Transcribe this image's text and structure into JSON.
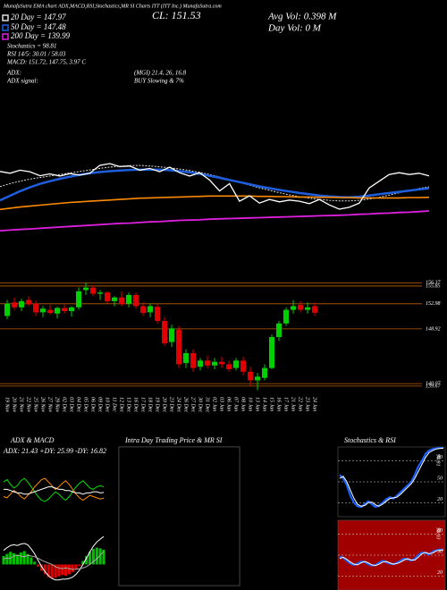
{
  "chart_data": [
    {
      "type": "candlestick",
      "title": "MunafaSutra EMA chart ADX,MACD,RSI,Stochastics,MR SI Charts ITT (ITT Inc.) MunafaSutra.com",
      "annotations": [
        "Stochastics = 98.81",
        "RSI 14/5: 30.01 / 58.03",
        "MACD: 151.72, 147.75, 3.97 C",
        "CL: 151.53",
        "Avg Vol: 0.398 M",
        "Day Vol: 0 M",
        "ADX:",
        "(MGI) 21.4, 26, 16.8",
        "ADX signal:",
        "BUY Slowing & 7%"
      ],
      "categories": [
        "19 Nov",
        "20 Nov",
        "21 Nov",
        "22 Nov",
        "25 Nov",
        "26 Nov",
        "27 Nov",
        "29 Nov",
        "02 Dec",
        "03 Dec",
        "04 Dec",
        "05 Dec",
        "06 Dec",
        "09 Dec",
        "10 Dec",
        "11 Dec",
        "12 Dec",
        "13 Dec",
        "16 Dec",
        "17 Dec",
        "18 Dec",
        "19 Dec",
        "20 Dec",
        "23 Dec",
        "24 Dec",
        "26 Dec",
        "27 Dec",
        "30 Dec",
        "31 Dec",
        "02 Jan",
        "03 Jan",
        "06 Jan",
        "07 Jan",
        "08 Jan",
        "10 Jan",
        "13 Jan",
        "14 Jan",
        "15 Jan",
        "16 Jan",
        "17 Jan",
        "21 Jan",
        "22 Jan",
        "23 Jan",
        "24 Jan"
      ],
      "open": [
        151.0,
        153.2,
        152.4,
        153.6,
        153.0,
        151.6,
        152.0,
        151.4,
        152.3,
        151.8,
        152.4,
        155.2,
        155.6,
        154.6,
        154.8,
        153.4,
        154.0,
        153.0,
        154.4,
        152.6,
        151.6,
        152.5,
        150.2,
        146.8,
        148.8,
        143.4,
        145.0,
        142.8,
        143.8,
        143.0,
        143.6,
        143.2,
        142.6,
        143.8,
        142.0,
        140.6,
        141.0,
        142.6,
        147.6,
        149.8,
        152.0,
        152.8,
        152.0,
        152.6
      ],
      "high": [
        153.6,
        154.0,
        153.8,
        154.2,
        153.5,
        152.6,
        152.8,
        152.5,
        152.9,
        152.6,
        155.6,
        156.4,
        156.0,
        155.2,
        155.0,
        154.2,
        155.0,
        154.8,
        154.8,
        153.2,
        153.0,
        152.9,
        150.8,
        149.6,
        149.4,
        145.6,
        145.6,
        144.2,
        144.6,
        144.2,
        144.4,
        143.8,
        144.2,
        144.4,
        142.8,
        141.8,
        143.2,
        148.0,
        150.2,
        152.4,
        153.6,
        153.4,
        153.2,
        153.2
      ],
      "low": [
        150.5,
        152.0,
        151.8,
        152.6,
        151.0,
        150.8,
        151.2,
        150.6,
        151.4,
        150.9,
        152.0,
        154.4,
        154.2,
        153.6,
        153.0,
        152.6,
        152.6,
        152.4,
        152.2,
        151.0,
        150.8,
        149.8,
        146.2,
        146.0,
        142.6,
        142.6,
        142.0,
        142.2,
        142.6,
        142.4,
        142.6,
        142.0,
        142.2,
        141.4,
        139.6,
        139.0,
        140.6,
        142.4,
        147.0,
        149.4,
        151.4,
        151.6,
        151.4,
        151.0
      ],
      "close": [
        153.0,
        152.4,
        153.4,
        152.9,
        151.6,
        152.2,
        151.5,
        152.3,
        151.8,
        152.4,
        155.0,
        155.6,
        154.6,
        154.8,
        153.4,
        154.0,
        152.9,
        154.4,
        152.6,
        151.5,
        152.6,
        150.2,
        146.6,
        149.0,
        143.2,
        145.0,
        142.6,
        143.8,
        143.0,
        143.6,
        143.2,
        142.4,
        143.8,
        142.0,
        140.6,
        141.2,
        142.6,
        147.6,
        149.8,
        152.0,
        152.6,
        152.0,
        152.4,
        151.53
      ],
      "up_color": "#00d000",
      "down_color": "#e00000",
      "close_color": "#ffffff",
      "ylim": [
        138.5,
        157
      ],
      "levels": [
        156.37,
        155.85,
        152.98,
        148.92,
        140.07,
        139.67
      ],
      "level_color": "#c06000",
      "y2lim": [
        130,
        180
      ],
      "series": [
        {
          "name": "20 Day = 147.97",
          "color": "#dddddd",
          "axis": "y2",
          "values": [
            148,
            149,
            149.8,
            150.5,
            151,
            151.5,
            152,
            152.5,
            153,
            153.5,
            154,
            154.4,
            154.7,
            154.9,
            155,
            154.8,
            154.5,
            154.2,
            153.8,
            153.3,
            152.7,
            152,
            151.2,
            150.3,
            149.4,
            148.5,
            147.6,
            146.8,
            146,
            145.3,
            144.7,
            144.2,
            143.8,
            143.5,
            143.3,
            143.3,
            143.5,
            143.9,
            144.5,
            145.2,
            146,
            146.7,
            147.4,
            147.97
          ]
        },
        {
          "name": "50 Day = 147.48",
          "color": "#1e5fe0",
          "axis": "y2",
          "values": [
            143.5,
            145,
            146.5,
            147.8,
            148.9,
            149.8,
            150.6,
            151.3,
            151.9,
            152.4,
            152.8,
            153.1,
            153.3,
            153.5,
            153.6,
            153.6,
            153.6,
            153.4,
            153.1,
            152.7,
            152.2,
            151.6,
            150.9,
            150.2,
            149.5,
            148.8,
            148.1,
            147.5,
            146.9,
            146.4,
            145.9,
            145.5,
            145.1,
            144.8,
            144.6,
            144.5,
            144.7,
            145.1,
            145.5,
            145.9,
            146.3,
            146.7,
            147.1,
            147.48
          ]
        },
        {
          "color": "#ff8c00",
          "axis": "y2",
          "values": [
            140.5,
            140.9,
            141.3,
            141.6,
            141.9,
            142.2,
            142.5,
            142.8,
            143.0,
            143.2,
            143.4,
            143.6,
            143.8,
            144.0,
            144.2,
            144.3,
            144.4,
            144.5,
            144.6,
            144.7,
            144.8,
            144.9,
            144.9,
            144.9,
            144.9,
            144.9,
            144.8,
            144.8,
            144.7,
            144.7,
            144.6,
            144.6,
            144.5,
            144.5,
            144.4,
            144.4,
            144.3,
            144.3,
            144.3,
            144.3,
            144.3,
            144.4,
            144.4,
            144.5
          ]
        },
        {
          "name": "200 Day = 139.99",
          "color": "#e020e0",
          "axis": "y2",
          "values": [
            133.5,
            133.7,
            133.9,
            134.1,
            134.3,
            134.5,
            134.7,
            134.9,
            135.1,
            135.3,
            135.5,
            135.7,
            135.9,
            136.0,
            136.2,
            136.4,
            136.5,
            136.7,
            136.9,
            137.0,
            137.1,
            137.3,
            137.4,
            137.5,
            137.6,
            137.7,
            137.8,
            137.9,
            138.0,
            138.1,
            138.2,
            138.3,
            138.4,
            138.5,
            138.6,
            138.7,
            138.9,
            139.0,
            139.2,
            139.3,
            139.5,
            139.6,
            139.8,
            139.99
          ]
        }
      ]
    },
    {
      "type": "line",
      "title": "ADX & MACD",
      "annotation": "ADX: 21.43 +DY: 25.99 -DY: 16.82",
      "ylim": [
        0,
        50
      ],
      "series": [
        {
          "color": "#00e000",
          "values": [
            30,
            32,
            28,
            25,
            27,
            31,
            33,
            30,
            26,
            22,
            18,
            15,
            14,
            16,
            19,
            22,
            20,
            17,
            15,
            18,
            22,
            26,
            29,
            31,
            28,
            25,
            24,
            26,
            27,
            25.99
          ]
        },
        {
          "color": "#ff8c00",
          "values": [
            18,
            17,
            20,
            23,
            21,
            18,
            16,
            19,
            22,
            26,
            29,
            32,
            33,
            30,
            27,
            24,
            26,
            29,
            31,
            28,
            24,
            20,
            17,
            15,
            17,
            19,
            18,
            17,
            16,
            16.82
          ]
        },
        {
          "color": "#ffffff",
          "values": [
            24,
            24,
            23,
            22,
            21,
            21,
            20,
            20,
            21,
            22,
            23,
            24,
            25,
            26,
            26,
            25,
            24,
            24,
            23,
            23,
            22,
            21,
            21,
            20,
            21,
            21,
            22,
            22,
            21,
            21.43
          ]
        }
      ]
    },
    {
      "type": "macd",
      "ylim": [
        -3,
        4
      ],
      "up_color": "#00c000",
      "down_color": "#e00000",
      "values": [
        1.2,
        1.5,
        1.8,
        1.6,
        1.4,
        1.7,
        1.9,
        1.5,
        1.0,
        0.4,
        -0.3,
        -0.9,
        -1.4,
        -1.8,
        -2.0,
        -1.9,
        -1.7,
        -1.5,
        -1.6,
        -1.4,
        -1.1,
        -0.7,
        -0.2,
        0.5,
        1.2,
        1.8,
        2.2,
        2.4,
        2.3,
        2.1
      ],
      "series": [
        {
          "color": "#ffffff",
          "values": [
            2.0,
            2.4,
            2.7,
            2.8,
            2.7,
            2.9,
            3.0,
            2.8,
            2.2,
            1.5,
            0.6,
            -0.3,
            -1.0,
            -1.6,
            -2.0,
            -2.2,
            -2.2,
            -2.1,
            -2.1,
            -2.0,
            -1.8,
            -1.4,
            -0.8,
            0.0,
            0.9,
            1.8,
            2.6,
            3.2,
            3.6,
            3.97
          ]
        },
        {
          "color": "#aaaaaa",
          "values": [
            0.8,
            0.9,
            0.9,
            1.2,
            1.3,
            1.2,
            1.1,
            1.3,
            1.2,
            1.1,
            0.9,
            0.6,
            0.4,
            0.2,
            0,
            -0.3,
            -0.5,
            -0.6,
            -0.5,
            -0.6,
            -0.7,
            -0.7,
            -0.6,
            -0.5,
            -0.3,
            0,
            0.4,
            0.8,
            1.3,
            1.87
          ]
        }
      ]
    },
    {
      "type": "line",
      "title": "Intra Day Trading Price & MR SI",
      "background": "#000000"
    },
    {
      "type": "line",
      "title": "Stochastics & RSI",
      "annotation": "98.81",
      "ylim": [
        0,
        100
      ],
      "yticks": [
        20,
        50,
        80
      ],
      "grid": true,
      "background": "#000000",
      "series": [
        {
          "color": "#1e5fff",
          "values": [
            60,
            55,
            45,
            30,
            20,
            15,
            14,
            18,
            22,
            18,
            14,
            16,
            20,
            25,
            28,
            26,
            30,
            35,
            40,
            45,
            50,
            60,
            72,
            80,
            90,
            95,
            97,
            98,
            98.5,
            98.81
          ]
        },
        {
          "color": "#ffffff",
          "values": [
            55,
            58,
            50,
            38,
            26,
            18,
            15,
            16,
            20,
            21,
            17,
            15,
            18,
            22,
            26,
            27,
            28,
            32,
            37,
            42,
            47,
            55,
            65,
            75,
            85,
            92,
            95,
            97,
            98,
            98.2
          ]
        }
      ]
    },
    {
      "type": "line",
      "annotation": "58.03",
      "ylim": [
        0,
        100
      ],
      "yticks": [
        20,
        50,
        80
      ],
      "grid": true,
      "background": "#a00000",
      "series": [
        {
          "color": "#1e5fff",
          "values": [
            48,
            46,
            42,
            38,
            36,
            38,
            41,
            40,
            37,
            35,
            36,
            39,
            42,
            40,
            38,
            37,
            39,
            42,
            45,
            44,
            42,
            45,
            50,
            54,
            53,
            51,
            55,
            57,
            58,
            58.03
          ]
        },
        {
          "color": "#ffffff",
          "values": [
            45,
            47,
            44,
            40,
            37,
            36,
            39,
            41,
            39,
            36,
            35,
            37,
            40,
            41,
            39,
            37,
            38,
            40,
            43,
            45,
            43,
            43,
            47,
            52,
            54,
            52,
            53,
            56,
            57,
            57.5
          ]
        }
      ]
    }
  ]
}
